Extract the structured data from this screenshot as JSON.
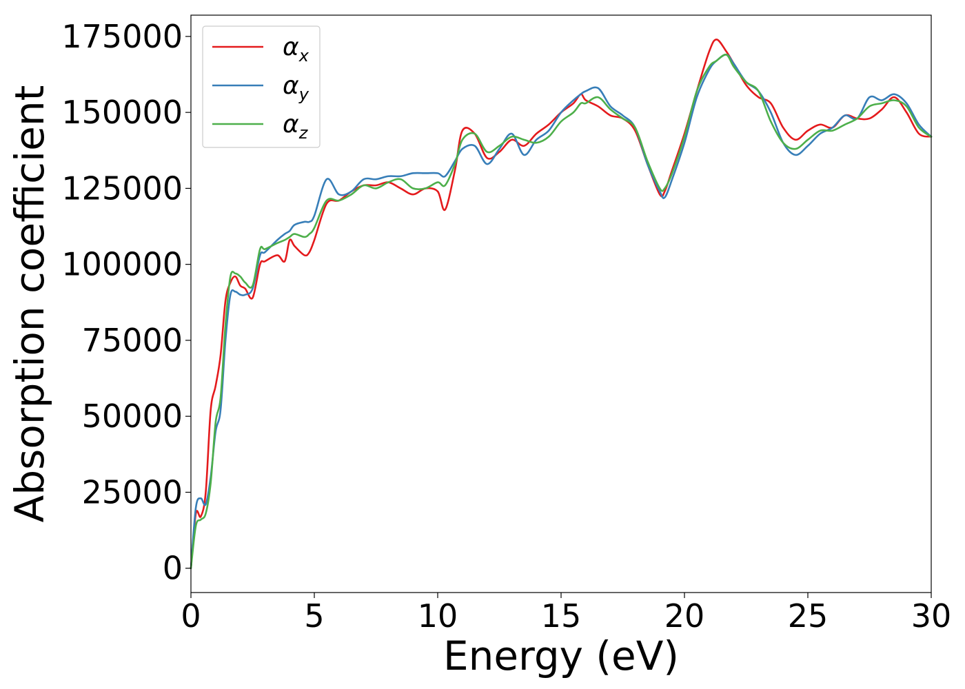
{
  "chart_data": {
    "type": "line",
    "xlabel": "Energy (eV)",
    "ylabel": "Absorption coefficient",
    "xlim": [
      0,
      30
    ],
    "ylim": [
      -8000,
      182000
    ],
    "xticks": [
      0,
      5,
      10,
      15,
      20,
      25,
      30
    ],
    "xtick_labels": [
      "0",
      "5",
      "10",
      "15",
      "20",
      "25",
      "30"
    ],
    "yticks": [
      0,
      25000,
      50000,
      75000,
      100000,
      125000,
      150000,
      175000
    ],
    "ytick_labels": [
      "0",
      "25000",
      "50000",
      "75000",
      "100000",
      "125000",
      "150000",
      "175000"
    ],
    "grid": false,
    "legend_position": "top-left",
    "series": [
      {
        "name": "α_x",
        "label_base": "α",
        "label_sub": "x",
        "color": "#e41a1c",
        "x": [
          0,
          0.2,
          0.4,
          0.6,
          0.8,
          1.0,
          1.2,
          1.4,
          1.6,
          1.8,
          2.0,
          2.2,
          2.5,
          2.8,
          3.0,
          3.5,
          3.8,
          4.0,
          4.2,
          4.6,
          4.8,
          5.0,
          5.5,
          6.0,
          6.5,
          7.0,
          7.5,
          8.0,
          8.5,
          9.0,
          9.5,
          10.0,
          10.3,
          10.7,
          11.0,
          11.5,
          12.0,
          12.5,
          13.0,
          13.5,
          14.0,
          14.5,
          15.0,
          15.5,
          15.8,
          16.0,
          16.5,
          17.0,
          17.5,
          18.0,
          18.5,
          19.0,
          19.2,
          19.5,
          20.0,
          20.5,
          21.0,
          21.3,
          21.7,
          22.0,
          22.5,
          23.0,
          23.5,
          24.0,
          24.5,
          25.0,
          25.5,
          26.0,
          26.5,
          27.0,
          27.5,
          28.0,
          28.5,
          29.0,
          29.5,
          30.0
        ],
        "y": [
          0,
          18000,
          17000,
          25000,
          52000,
          60000,
          70000,
          88000,
          94000,
          96000,
          93000,
          92000,
          89000,
          100000,
          101000,
          103000,
          101000,
          108000,
          106000,
          103000,
          104000,
          108000,
          120000,
          121000,
          124000,
          126000,
          126000,
          127000,
          125000,
          123000,
          125000,
          124000,
          118000,
          131000,
          144000,
          143000,
          135000,
          137000,
          141000,
          139000,
          143000,
          146000,
          150000,
          153000,
          156000,
          154000,
          152000,
          149000,
          148000,
          144000,
          133000,
          123000,
          124000,
          131000,
          143000,
          157000,
          170000,
          174000,
          170000,
          166000,
          159000,
          155000,
          153000,
          145000,
          141000,
          144000,
          146000,
          145000,
          149000,
          148000,
          148000,
          151000,
          155000,
          150000,
          143000,
          142000
        ]
      },
      {
        "name": "α_y",
        "label_base": "α",
        "label_sub": "y",
        "color": "#377eb8",
        "x": [
          0,
          0.2,
          0.4,
          0.6,
          0.8,
          1.0,
          1.2,
          1.4,
          1.6,
          1.8,
          2.0,
          2.2,
          2.5,
          2.8,
          3.0,
          3.5,
          3.8,
          4.0,
          4.2,
          4.6,
          4.8,
          5.0,
          5.5,
          6.0,
          6.5,
          7.0,
          7.5,
          8.0,
          8.5,
          9.0,
          9.5,
          10.0,
          10.3,
          10.7,
          11.0,
          11.5,
          12.0,
          12.5,
          13.0,
          13.5,
          14.0,
          14.5,
          15.0,
          15.5,
          15.8,
          16.0,
          16.5,
          17.0,
          17.5,
          18.0,
          18.5,
          19.0,
          19.2,
          19.5,
          20.0,
          20.5,
          21.0,
          21.3,
          21.7,
          22.0,
          22.5,
          23.0,
          23.5,
          24.0,
          24.5,
          25.0,
          25.5,
          26.0,
          26.5,
          27.0,
          27.5,
          28.0,
          28.5,
          29.0,
          29.5,
          30.0
        ],
        "y": [
          0,
          20000,
          23000,
          21000,
          30000,
          45000,
          52000,
          75000,
          90000,
          91000,
          90000,
          90000,
          92000,
          103000,
          104000,
          108000,
          110000,
          111000,
          113000,
          114000,
          114000,
          116000,
          128000,
          123000,
          124000,
          128000,
          128000,
          129000,
          129000,
          130000,
          130000,
          130000,
          129000,
          134000,
          138000,
          139000,
          133000,
          138000,
          143000,
          136000,
          141000,
          144000,
          150000,
          154000,
          156000,
          157000,
          158000,
          152000,
          149000,
          145000,
          133000,
          124000,
          122000,
          128000,
          140000,
          155000,
          164000,
          167000,
          169000,
          166000,
          160000,
          157000,
          150000,
          140000,
          136000,
          139000,
          143000,
          145000,
          149000,
          148000,
          155000,
          154000,
          156000,
          153000,
          146000,
          142000
        ]
      },
      {
        "name": "α_z",
        "label_base": "α",
        "label_sub": "z",
        "color": "#4daf4a",
        "x": [
          0,
          0.2,
          0.4,
          0.6,
          0.8,
          1.0,
          1.2,
          1.4,
          1.6,
          1.8,
          2.0,
          2.2,
          2.5,
          2.8,
          3.0,
          3.5,
          3.8,
          4.0,
          4.2,
          4.6,
          4.8,
          5.0,
          5.5,
          6.0,
          6.5,
          7.0,
          7.5,
          8.0,
          8.5,
          9.0,
          9.5,
          10.0,
          10.3,
          10.7,
          11.0,
          11.5,
          12.0,
          12.5,
          13.0,
          13.5,
          14.0,
          14.5,
          15.0,
          15.5,
          15.8,
          16.0,
          16.5,
          17.0,
          17.5,
          18.0,
          18.5,
          19.0,
          19.2,
          19.5,
          20.0,
          20.5,
          21.0,
          21.3,
          21.7,
          22.0,
          22.5,
          23.0,
          23.5,
          24.0,
          24.5,
          25.0,
          25.5,
          26.0,
          26.5,
          27.0,
          27.5,
          28.0,
          28.5,
          29.0,
          29.5,
          30.0
        ],
        "y": [
          0,
          14000,
          16000,
          18000,
          28000,
          48000,
          56000,
          80000,
          96000,
          97000,
          96000,
          94000,
          93000,
          105000,
          105000,
          107000,
          108000,
          109000,
          110000,
          109000,
          110000,
          112000,
          121000,
          121000,
          123000,
          126000,
          125000,
          127000,
          128000,
          125000,
          125000,
          127000,
          126000,
          133000,
          141000,
          143000,
          137000,
          139000,
          142000,
          141000,
          140000,
          142000,
          147000,
          150000,
          153000,
          153000,
          155000,
          151000,
          148000,
          145000,
          134000,
          125000,
          125000,
          130000,
          142000,
          157000,
          165000,
          167000,
          169000,
          165000,
          160000,
          157000,
          147000,
          140000,
          138000,
          141000,
          144000,
          144000,
          146000,
          148000,
          152000,
          153000,
          154000,
          152000,
          145000,
          142000
        ]
      }
    ]
  }
}
